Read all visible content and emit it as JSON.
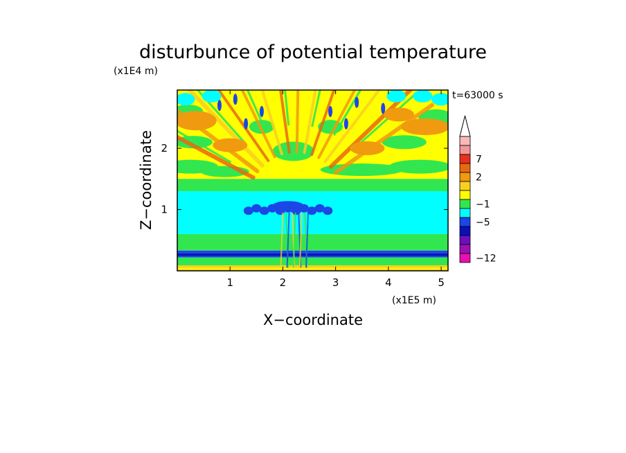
{
  "chart_data": {
    "type": "heatmap",
    "title": "disturbunce of potential temperature",
    "time_label": "t=63000 s",
    "xlabel": "X−coordinate",
    "ylabel": "Z−coordinate",
    "x_scale_label": "(x1E5 m)",
    "y_scale_label": "(x1E4 m)",
    "xlim": [
      0,
      5.13
    ],
    "ylim": [
      0,
      2.95
    ],
    "x_ticks": [
      {
        "value": 1,
        "label": "1"
      },
      {
        "value": 2,
        "label": "2"
      },
      {
        "value": 3,
        "label": "3"
      },
      {
        "value": 4,
        "label": "4"
      },
      {
        "value": 5,
        "label": "5"
      }
    ],
    "y_ticks": [
      {
        "value": 1,
        "label": "1"
      },
      {
        "value": 2,
        "label": "2"
      }
    ],
    "colorbar": {
      "levels_top_to_bottom": [
        {
          "color": "#f8b8b8",
          "label": ""
        },
        {
          "color": "#f09898",
          "label": ""
        },
        {
          "color": "#e83020",
          "label": "7"
        },
        {
          "color": "#e86a10",
          "label": ""
        },
        {
          "color": "#f09a10",
          "label": "2"
        },
        {
          "color": "#f8d020",
          "label": ""
        },
        {
          "color": "#ffff00",
          "label": ""
        },
        {
          "color": "#32e650",
          "label": "−1"
        },
        {
          "color": "#00ffff",
          "label": ""
        },
        {
          "color": "#1c46e6",
          "label": "−5"
        },
        {
          "color": "#0a10b8",
          "label": ""
        },
        {
          "color": "#6a10c0",
          "label": ""
        },
        {
          "color": "#a010b0",
          "label": ""
        },
        {
          "color": "#e610b4",
          "label": "−12"
        }
      ],
      "extend": "max"
    },
    "field_regions": [
      {
        "z_range": [
          0.0,
          0.09
        ],
        "dominant": "yellow-orange"
      },
      {
        "z_range": [
          0.09,
          0.22
        ],
        "dominant": "green"
      },
      {
        "z_range": [
          0.22,
          0.33
        ],
        "dominant": "dark-blue"
      },
      {
        "z_range": [
          0.33,
          0.6
        ],
        "dominant": "green"
      },
      {
        "z_range": [
          0.6,
          1.3
        ],
        "dominant": "cyan"
      },
      {
        "z_range": [
          1.3,
          1.5
        ],
        "dominant": "green"
      },
      {
        "z_range": [
          1.5,
          2.95
        ],
        "dominant": "yellow with orange/red/blue rays"
      }
    ]
  }
}
